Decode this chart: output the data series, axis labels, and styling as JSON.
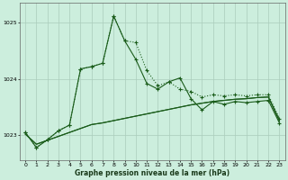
{
  "xlabel": "Graphe pression niveau de la mer (hPa)",
  "background_color": "#cceedd",
  "grid_color": "#aaccbb",
  "line_color": "#1a5c1a",
  "ylim": [
    1022.55,
    1025.35
  ],
  "yticks": [
    1023,
    1024,
    1025
  ],
  "xlim": [
    -0.5,
    23.5
  ],
  "xticks": [
    0,
    1,
    2,
    3,
    4,
    5,
    6,
    7,
    8,
    9,
    10,
    11,
    12,
    13,
    14,
    15,
    16,
    17,
    18,
    19,
    20,
    21,
    22,
    23
  ],
  "series_dotted": [
    1023.05,
    1022.78,
    1022.92,
    1023.08,
    1023.18,
    1024.18,
    1024.22,
    1024.28,
    1025.12,
    1024.68,
    1024.65,
    1024.15,
    1023.88,
    1023.95,
    1023.82,
    1023.78,
    1023.68,
    1023.72,
    1023.7,
    1023.72,
    1023.7,
    1023.72,
    1023.72,
    1023.3
  ],
  "series_solid": [
    1023.05,
    1022.78,
    1022.92,
    1023.08,
    1023.18,
    1024.18,
    1024.22,
    1024.28,
    1025.12,
    1024.68,
    1024.35,
    1023.92,
    1023.82,
    1023.95,
    1024.02,
    1023.65,
    1023.45,
    1023.6,
    1023.55,
    1023.6,
    1023.58,
    1023.6,
    1023.62,
    1023.22
  ],
  "series_linear1": [
    1023.02,
    1022.84,
    1022.91,
    1022.98,
    1023.05,
    1023.12,
    1023.19,
    1023.22,
    1023.26,
    1023.3,
    1023.34,
    1023.38,
    1023.42,
    1023.46,
    1023.5,
    1023.54,
    1023.57,
    1023.6,
    1023.62,
    1023.64,
    1023.65,
    1023.67,
    1023.68,
    1023.25
  ],
  "series_linear2": [
    1023.02,
    1022.84,
    1022.91,
    1022.98,
    1023.05,
    1023.12,
    1023.19,
    1023.22,
    1023.26,
    1023.3,
    1023.34,
    1023.38,
    1023.42,
    1023.46,
    1023.5,
    1023.54,
    1023.57,
    1023.6,
    1023.62,
    1023.64,
    1023.65,
    1023.67,
    1023.68,
    1023.28
  ]
}
